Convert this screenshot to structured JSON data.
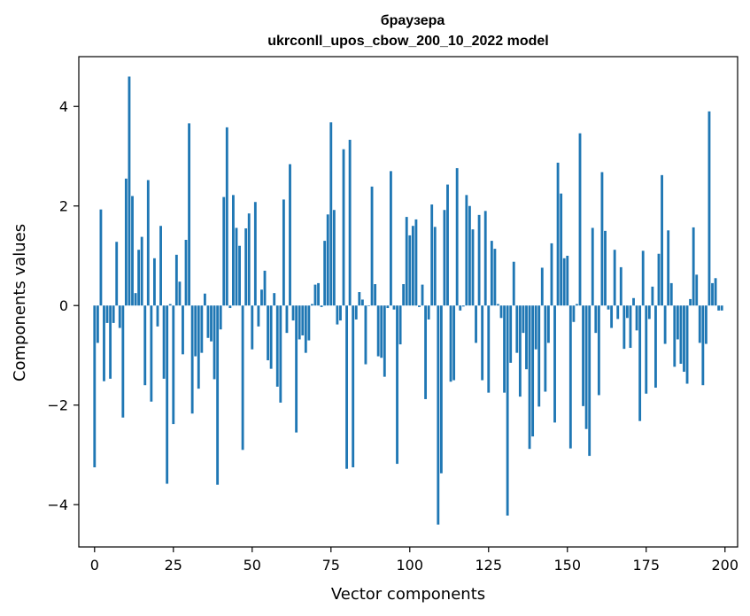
{
  "chart_data": {
    "type": "bar",
    "title": "браузера",
    "subtitle": "ukrconll_upos_cbow_200_10_2022 model",
    "xlabel": "Vector components",
    "ylabel": "Components values",
    "xlim": [
      -5,
      204
    ],
    "ylim": [
      -4.85,
      5.0
    ],
    "xticks": [
      0,
      25,
      50,
      75,
      100,
      125,
      150,
      175,
      200
    ],
    "yticks": [
      -4,
      -2,
      0,
      2,
      4
    ],
    "ytick_labels": [
      "−4",
      "−2",
      "0",
      "2",
      "4"
    ],
    "bar_color": "#1f77b4",
    "grid": false,
    "legend": "none",
    "series": [
      {
        "values": [
          -3.25,
          -0.75,
          1.93,
          -1.52,
          -0.35,
          -1.47,
          -0.35,
          1.28,
          -0.45,
          -2.25,
          2.55,
          4.6,
          2.2,
          0.25,
          1.12,
          1.38,
          -1.6,
          2.52,
          -1.93,
          0.95,
          -0.42,
          1.6,
          -1.47,
          -3.58,
          0.03,
          -2.38,
          1.02,
          0.48,
          -0.98,
          1.32,
          3.66,
          -2.17,
          -1.02,
          -1.67,
          -0.95,
          0.24,
          -0.65,
          -0.72,
          -1.48,
          -3.6,
          -0.48,
          2.18,
          3.58,
          -0.05,
          2.22,
          1.56,
          1.2,
          -2.9,
          1.55,
          1.85,
          -0.88,
          2.08,
          -0.42,
          0.32,
          0.7,
          -1.1,
          -1.27,
          0.25,
          -1.63,
          -1.95,
          2.13,
          -0.55,
          2.84,
          -0.3,
          -2.55,
          -0.68,
          -0.6,
          -0.95,
          -0.7,
          0.03,
          0.42,
          0.45,
          -0.03,
          1.3,
          1.83,
          3.68,
          1.92,
          -0.38,
          -0.3,
          3.14,
          -3.28,
          3.33,
          -3.25,
          -0.28,
          0.27,
          0.12,
          -1.18,
          0.0,
          2.39,
          0.43,
          -1.02,
          -1.05,
          -1.43,
          -0.05,
          2.7,
          -0.08,
          -3.18,
          -0.78,
          0.43,
          1.78,
          1.41,
          1.6,
          1.73,
          -0.03,
          0.42,
          -1.88,
          -0.28,
          2.03,
          1.58,
          -4.4,
          -3.37,
          1.92,
          2.43,
          -1.53,
          -1.5,
          2.76,
          -0.1,
          -0.02,
          2.22,
          2.0,
          1.53,
          -0.75,
          1.82,
          -1.5,
          1.9,
          -1.75,
          1.3,
          1.14,
          0.03,
          -0.25,
          -1.75,
          -4.22,
          -1.15,
          0.88,
          -0.95,
          -1.83,
          -0.55,
          -1.28,
          -2.88,
          -2.63,
          -0.88,
          -2.03,
          0.76,
          -1.73,
          -0.75,
          1.25,
          -2.35,
          2.87,
          2.25,
          0.95,
          1.0,
          -2.87,
          -0.33,
          0.03,
          3.46,
          -2.02,
          -2.48,
          -3.02,
          1.56,
          -0.55,
          -1.8,
          2.68,
          1.5,
          -0.08,
          -0.45,
          1.12,
          -0.27,
          0.77,
          -0.87,
          -0.25,
          -0.85,
          0.15,
          -0.5,
          -2.32,
          1.1,
          -1.77,
          -0.27,
          0.38,
          -1.65,
          1.04,
          2.62,
          -0.77,
          1.51,
          0.45,
          -1.23,
          -0.68,
          -1.17,
          -1.33,
          -1.57,
          0.13,
          1.57,
          0.62,
          -0.75,
          -1.6,
          -0.77,
          3.9,
          0.45,
          0.55,
          -0.1,
          -0.1
        ]
      }
    ]
  }
}
